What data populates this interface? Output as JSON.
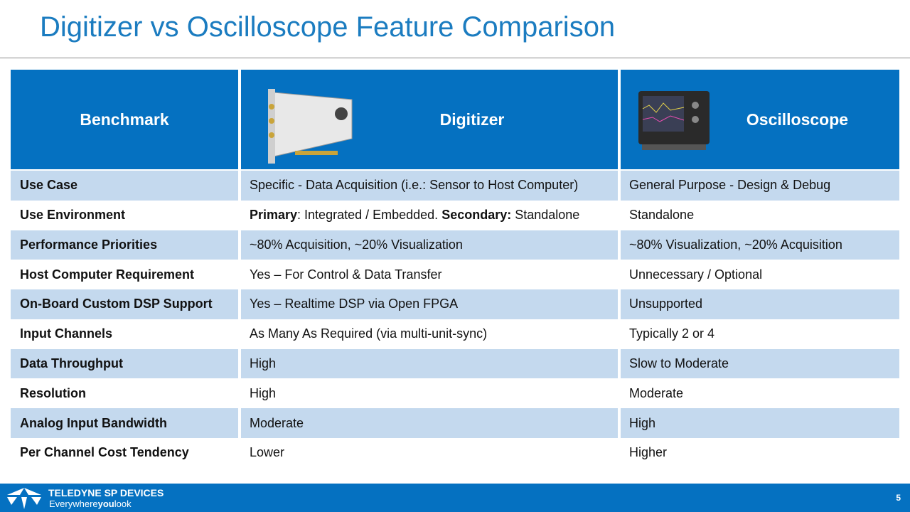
{
  "title": "Digitizer vs Oscilloscope Feature Comparison",
  "table": {
    "header": [
      "Benchmark",
      "Digitizer",
      "Oscilloscope"
    ],
    "rows": [
      [
        "Use Case",
        "Specific - Data Acquisition (i.e.: Sensor to Host Computer)",
        "General Purpose - Design & Debug"
      ],
      [
        "Use Environment",
        [
          {
            "text": "Primary",
            "bold": true
          },
          {
            "text": ": Integrated / Embedded. "
          },
          {
            "text": "Secondary:",
            "bold": true
          },
          {
            "text": " Standalone"
          }
        ],
        "Standalone"
      ],
      [
        "Performance Priorities",
        "~80% Acquisition, ~20% Visualization",
        "~80% Visualization, ~20% Acquisition"
      ],
      [
        "Host Computer Requirement",
        "Yes – For Control & Data Transfer",
        "Unnecessary / Optional"
      ],
      [
        "On-Board Custom DSP Support",
        "Yes – Realtime DSP via Open FPGA",
        "Unsupported"
      ],
      [
        "Input Channels",
        "As Many As Required (via multi-unit-sync)",
        "Typically 2 or 4"
      ],
      [
        "Data Throughput",
        "High",
        "Slow to Moderate"
      ],
      [
        "Resolution",
        "High",
        "Moderate"
      ],
      [
        "Analog Input Bandwidth",
        "Moderate",
        "High"
      ],
      [
        "Per Channel Cost Tendency",
        "Lower",
        "Higher"
      ]
    ]
  },
  "footer": {
    "brand": "TELEDYNE SP DEVICES",
    "tagline": [
      "Everywhere",
      "you",
      "look"
    ],
    "page": "5"
  }
}
